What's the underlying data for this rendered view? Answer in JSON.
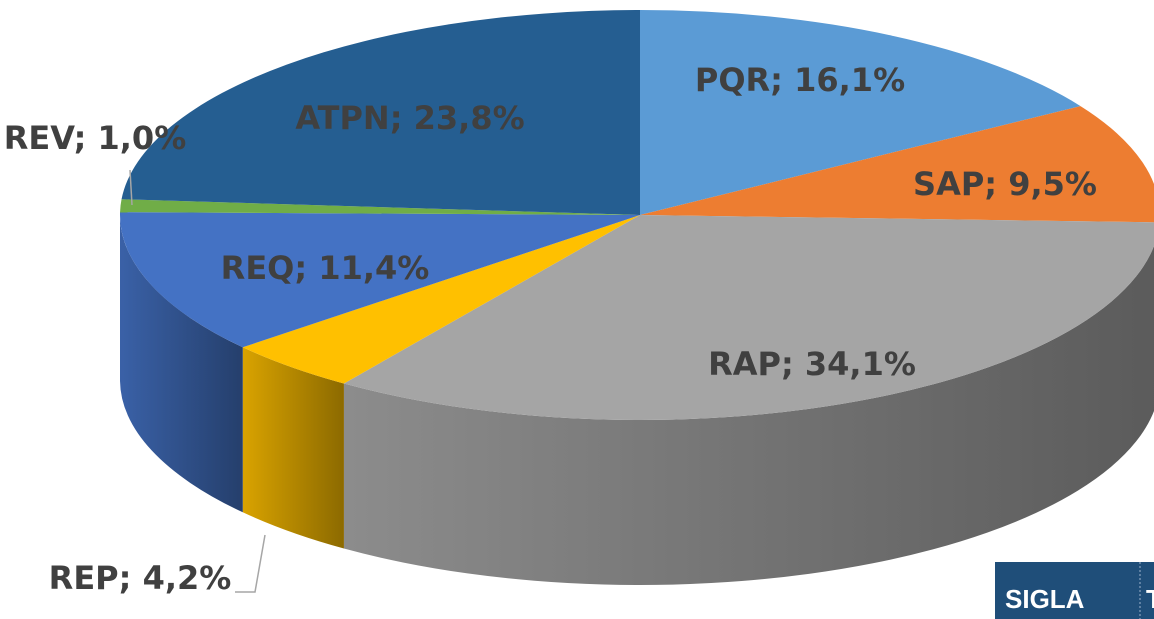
{
  "chart_data": {
    "type": "pie",
    "categories": [
      "PQR",
      "SAP",
      "RAP",
      "REP",
      "REQ",
      "REV",
      "ATPN"
    ],
    "values": [
      16.1,
      9.5,
      34.1,
      4.2,
      11.4,
      1.0,
      23.8
    ],
    "value_labels": [
      "PQR; 16,1%",
      "SAP; 9,5%",
      "RAP; 34,1%",
      "REP; 4,2%",
      "REQ; 11,4%",
      "REV; 1,0%",
      "ATPN; 23,8%"
    ],
    "colors": [
      "#5b9bd5",
      "#ed7d31",
      "#a5a5a5",
      "#ffc000",
      "#4472c4",
      "#70ad47",
      "#255e91"
    ]
  },
  "table": {
    "header": [
      "SIGLA",
      "T"
    ]
  }
}
